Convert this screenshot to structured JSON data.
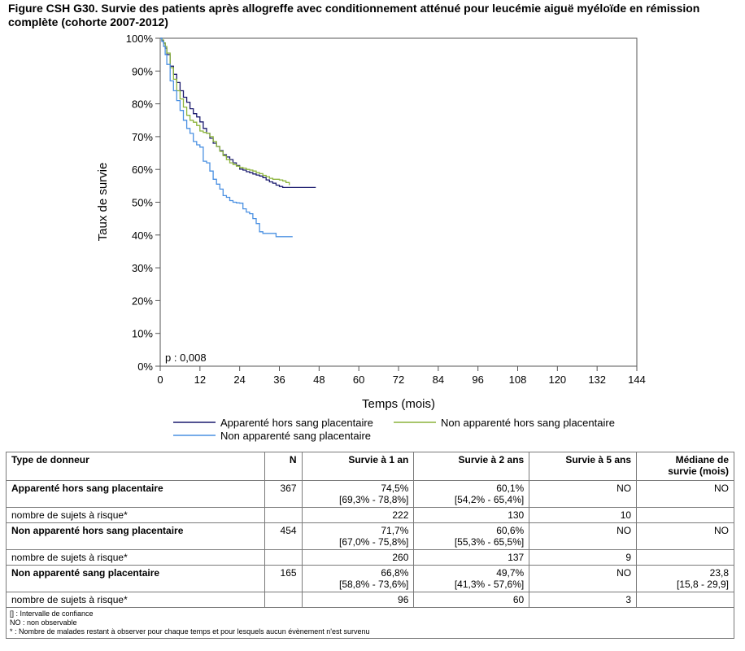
{
  "title": "Figure CSH G30. Survie des patients après allogreffe avec conditionnement atténué pour leucémie aiguë myéloïde en rémission complète (cohorte 2007-2012)",
  "chart_data": {
    "type": "line",
    "xlabel": "Temps (mois)",
    "ylabel": "Taux de survie",
    "xlim": [
      0,
      144
    ],
    "ylim": [
      0,
      100
    ],
    "xticks": [
      0,
      12,
      24,
      36,
      48,
      60,
      72,
      84,
      96,
      108,
      120,
      132,
      144
    ],
    "xtick_labels": [
      "0",
      "12",
      "24",
      "36",
      "48",
      "60",
      "72",
      "84",
      "96",
      "108",
      "120",
      "132",
      "144"
    ],
    "yticks": [
      0,
      10,
      20,
      30,
      40,
      50,
      60,
      70,
      80,
      90,
      100
    ],
    "ytick_labels": [
      "0%",
      "10%",
      "20%",
      "30%",
      "40%",
      "50%",
      "60%",
      "70%",
      "80%",
      "90%",
      "100%"
    ],
    "annotation": "p : 0,008",
    "grid": false,
    "legend_position": "bottom",
    "series": [
      {
        "name": "Apparenté hors sang placentaire",
        "color": "#1a1a6e",
        "x": [
          0,
          0.5,
          1,
          1.5,
          2,
          3,
          4,
          5,
          6,
          7,
          8,
          9,
          10,
          11,
          12,
          13,
          14,
          15,
          16,
          17,
          18,
          19,
          20,
          21,
          22,
          23,
          24,
          25,
          26,
          27,
          28,
          29,
          30,
          31,
          32,
          33,
          34,
          35,
          36,
          37,
          38,
          40,
          44,
          47
        ],
        "y": [
          100,
          99.3,
          98.5,
          97,
          95,
          91.5,
          89,
          86.5,
          84,
          82,
          80.5,
          78.5,
          77,
          76,
          74.5,
          72.5,
          71,
          69.5,
          68,
          67,
          65.7,
          64.5,
          63.8,
          63,
          62,
          61.2,
          60.1,
          59.8,
          59.3,
          59,
          58.6,
          58.3,
          58,
          57.5,
          56.8,
          56.2,
          55.8,
          55.2,
          54.8,
          54.5,
          54.5,
          54.5,
          54.5,
          54.5
        ]
      },
      {
        "name": "Non apparenté hors sang placentaire",
        "color": "#8cb43c",
        "x": [
          0,
          0.5,
          1,
          1.5,
          2,
          3,
          4,
          5,
          6,
          7,
          8,
          9,
          10,
          11,
          12,
          13,
          14,
          15,
          16,
          17,
          18,
          19,
          20,
          21,
          22,
          23,
          24,
          25,
          26,
          27,
          28,
          29,
          30,
          31,
          32,
          33,
          34,
          35,
          36,
          37,
          38,
          39
        ],
        "y": [
          100,
          99.5,
          98.6,
          97.5,
          95.5,
          91,
          87.5,
          84,
          81.5,
          79,
          76.5,
          75,
          74.4,
          73.4,
          71.7,
          71.3,
          71,
          70,
          68.5,
          67,
          65.5,
          64.2,
          63,
          62,
          61.5,
          61,
          60.6,
          60.4,
          60,
          59.8,
          59.5,
          59,
          58.7,
          58.2,
          57.8,
          57.3,
          57,
          57,
          56.8,
          56.5,
          56,
          55.2
        ]
      },
      {
        "name": "Non apparenté sang placentaire",
        "color": "#4a90e2",
        "x": [
          0,
          0.5,
          1,
          1.5,
          2,
          3,
          4,
          5,
          6,
          7,
          8,
          9,
          10,
          11,
          12,
          13,
          14,
          15,
          16,
          17,
          18,
          19,
          20,
          21,
          22,
          23,
          24,
          25,
          26,
          27,
          28,
          29,
          30,
          31,
          32,
          33,
          34,
          35,
          36,
          38,
          40
        ],
        "y": [
          100,
          99,
          97.5,
          95,
          92,
          87,
          84,
          81,
          78,
          75,
          72.5,
          71,
          68.5,
          67.5,
          66.8,
          62.5,
          62,
          59.5,
          57,
          55.5,
          54,
          52,
          51.5,
          50.5,
          50,
          49.8,
          49.7,
          48,
          47,
          46.5,
          45,
          43.5,
          41,
          40.5,
          40.5,
          40.5,
          40.5,
          39.5,
          39.5,
          39.5,
          39.5
        ]
      }
    ]
  },
  "table": {
    "headers": {
      "type": "Type de donneur",
      "n": "N",
      "s1": "Survie à 1 an",
      "s2": "Survie à 2 ans",
      "s5": "Survie à 5 ans",
      "median_line1": "Médiane de",
      "median_line2": "survie (mois)"
    },
    "rows": [
      {
        "name": "Apparenté hors sang placentaire",
        "n": "367",
        "s1": "74,5%",
        "s1_ci": "[69,3% - 78,8%]",
        "s2": "60,1%",
        "s2_ci": "[54,2% - 65,4%]",
        "s5": "NO",
        "median": "NO",
        "median_ci": "",
        "risk_label": "nombre de sujets à risque*",
        "risk1": "222",
        "risk2": "130",
        "risk5": "10"
      },
      {
        "name": "Non apparenté hors sang placentaire",
        "n": "454",
        "s1": "71,7%",
        "s1_ci": "[67,0% - 75,8%]",
        "s2": "60,6%",
        "s2_ci": "[55,3% - 65,5%]",
        "s5": "NO",
        "median": "NO",
        "median_ci": "",
        "risk_label": "nombre de sujets à risque*",
        "risk1": "260",
        "risk2": "137",
        "risk5": "9"
      },
      {
        "name": "Non apparenté sang placentaire",
        "n": "165",
        "s1": "66,8%",
        "s1_ci": "[58,8% - 73,6%]",
        "s2": "49,7%",
        "s2_ci": "[41,3% - 57,6%]",
        "s5": "NO",
        "median": "23,8",
        "median_ci": "[15,8 - 29,9]",
        "risk_label": "nombre de sujets à risque*",
        "risk1": "96",
        "risk2": "60",
        "risk5": "3"
      }
    ],
    "notes": [
      "[] : Intervalle de confiance",
      "NO : non observable",
      "* : Nombre de malades restant à observer pour chaque temps et pour lesquels aucun évènement n'est survenu"
    ]
  }
}
